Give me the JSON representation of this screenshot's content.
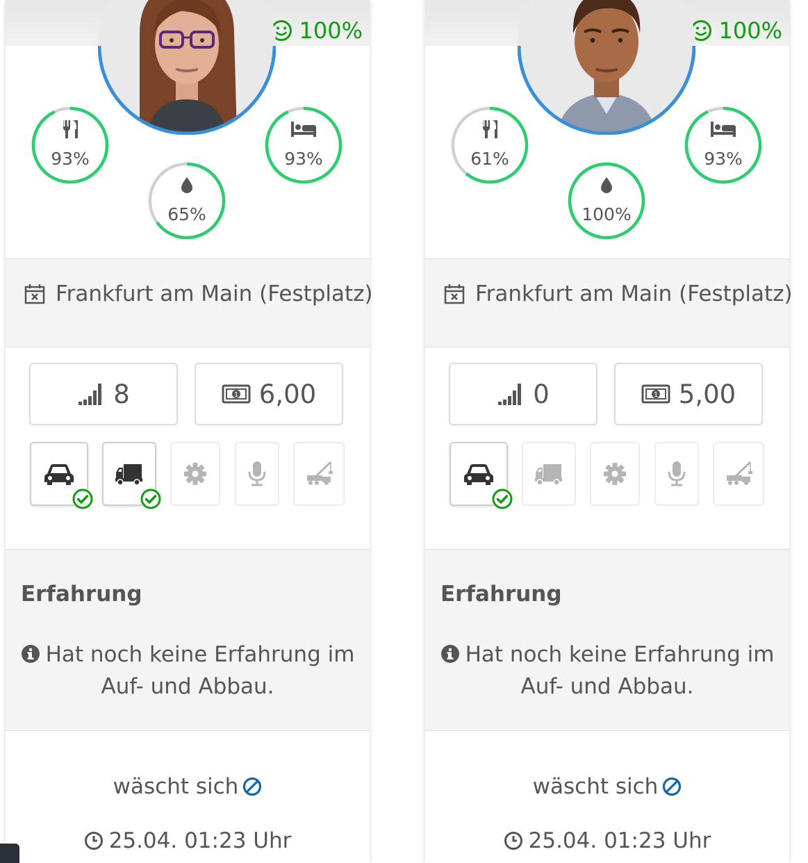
{
  "cards": [
    {
      "mood": "100%",
      "stats": {
        "food": "93%",
        "sleep": "93%",
        "hygiene": "65%"
      },
      "stat_values": {
        "food": 0.93,
        "sleep": 0.93,
        "hygiene": 0.65
      },
      "location": "Frankfurt am Main (Festplatz)",
      "level": "8",
      "wage": "6,00",
      "qualifications": {
        "car": true,
        "truck": true,
        "mechanic": false,
        "microphone": false,
        "crane": false
      },
      "experience_title": "Erfahrung",
      "experience_text": "Hat noch keine Erfahrung im Auf- und Abbau.",
      "status": "wäscht sich",
      "time": "25.04. 01:23 Uhr"
    },
    {
      "mood": "100%",
      "stats": {
        "food": "61%",
        "sleep": "93%",
        "hygiene": "100%"
      },
      "stat_values": {
        "food": 0.61,
        "sleep": 0.93,
        "hygiene": 1.0
      },
      "location": "Frankfurt am Main (Festplatz)",
      "level": "0",
      "wage": "5,00",
      "qualifications": {
        "car": true,
        "truck": false,
        "mechanic": false,
        "microphone": false,
        "crane": false
      },
      "experience_title": "Erfahrung",
      "experience_text": "Hat noch keine Erfahrung im Auf- und Abbau.",
      "status": "wäscht sich",
      "time": "25.04. 01:23 Uhr"
    }
  ],
  "colors": {
    "accent_green": "#2ecc71",
    "mood_green": "#139c13",
    "avatar_ring": "#3a8fd9",
    "status_blue": "#1565a8"
  },
  "icons": [
    "smile-icon",
    "food-icon",
    "bed-icon",
    "drop-icon",
    "calendar-icon",
    "signal-icon",
    "money-icon",
    "car-icon",
    "truck-icon",
    "gear-icon",
    "microphone-icon",
    "crane-icon",
    "check-icon",
    "info-icon",
    "ban-icon",
    "clock-icon"
  ]
}
